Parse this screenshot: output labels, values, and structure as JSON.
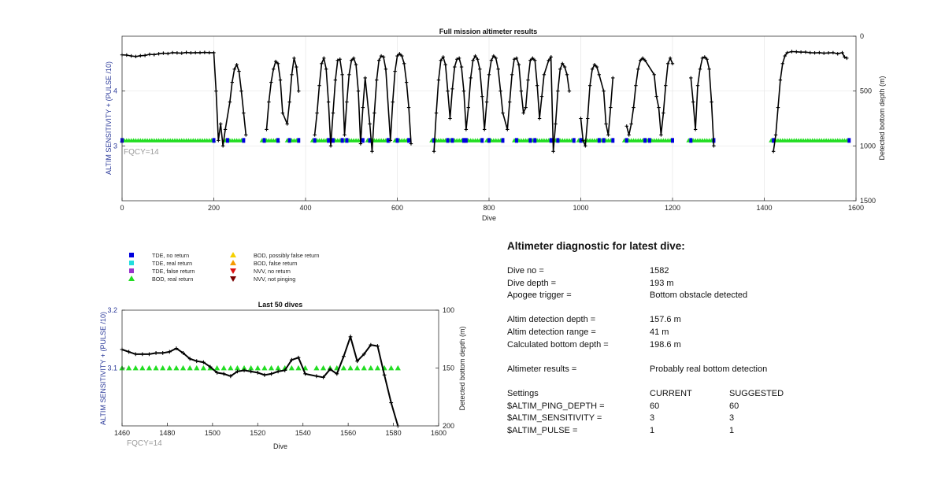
{
  "top_chart": {
    "chart_data": {
      "type": "scatter",
      "title": "Full mission altimeter results",
      "xlabel": "Dive",
      "ylabel_left": "ALTIM SENSITIVITY + (PULSE /10)",
      "ylabel_right": "Detected bottom depth (m)",
      "xlim": [
        0,
        1600
      ],
      "ylim_left": [
        2,
        5
      ],
      "ylim_right_reversed": [
        0,
        1500
      ],
      "x_ticks": [
        0,
        200,
        400,
        600,
        800,
        1000,
        1200,
        1400,
        1600
      ],
      "y_ticks_left": [
        3,
        4
      ],
      "y_ticks_right": [
        0,
        500,
        1000,
        1500
      ],
      "grid": true,
      "annotation": "FQCY=14",
      "sensitivity_level": 3.1,
      "tde_no_return_ranges": [
        [
          0,
          200
        ],
        [
          230,
          265
        ],
        [
          310,
          340
        ],
        [
          365,
          385
        ],
        [
          420,
          450
        ],
        [
          460,
          480
        ],
        [
          490,
          525
        ],
        [
          540,
          580
        ],
        [
          600,
          625
        ],
        [
          680,
          710
        ],
        [
          720,
          745
        ],
        [
          750,
          785
        ],
        [
          800,
          830
        ],
        [
          860,
          890
        ],
        [
          900,
          935
        ],
        [
          950,
          985
        ],
        [
          1000,
          1040
        ],
        [
          1050,
          1070
        ],
        [
          1100,
          1140
        ],
        [
          1150,
          1200
        ],
        [
          1240,
          1290
        ],
        [
          1420,
          1585
        ]
      ],
      "bod_real_return_ranges": [
        [
          0,
          200
        ],
        [
          225,
          260
        ],
        [
          305,
          340
        ],
        [
          360,
          380
        ],
        [
          415,
          445
        ],
        [
          455,
          480
        ],
        [
          485,
          520
        ],
        [
          535,
          575
        ],
        [
          595,
          620
        ],
        [
          675,
          705
        ],
        [
          715,
          740
        ],
        [
          745,
          780
        ],
        [
          795,
          825
        ],
        [
          855,
          885
        ],
        [
          895,
          930
        ],
        [
          945,
          980
        ],
        [
          995,
          1035
        ],
        [
          1045,
          1065
        ],
        [
          1095,
          1135
        ],
        [
          1145,
          1195
        ],
        [
          1235,
          1285
        ],
        [
          1415,
          1580
        ]
      ],
      "series": [
        {
          "name": "Detected bottom depth",
          "x": [
            0,
            10,
            20,
            30,
            40,
            50,
            60,
            70,
            80,
            90,
            100,
            110,
            120,
            130,
            140,
            150,
            160,
            170,
            180,
            190,
            200,
            205,
            210,
            215,
            220,
            225,
            235,
            240,
            245,
            250,
            255,
            260,
            265,
            270,
            315,
            320,
            325,
            330,
            335,
            340,
            345,
            350,
            360,
            365,
            370,
            375,
            380,
            385,
            420,
            425,
            430,
            435,
            440,
            445,
            450,
            455,
            460,
            465,
            470,
            475,
            480,
            485,
            490,
            495,
            500,
            505,
            510,
            515,
            520,
            525,
            530,
            540,
            545,
            550,
            555,
            560,
            565,
            570,
            575,
            585,
            590,
            595,
            600,
            605,
            610,
            615,
            620,
            625,
            630,
            680,
            685,
            690,
            695,
            700,
            705,
            710,
            715,
            720,
            725,
            730,
            735,
            740,
            745,
            750,
            755,
            760,
            765,
            770,
            775,
            780,
            785,
            790,
            795,
            800,
            805,
            810,
            815,
            820,
            825,
            830,
            840,
            845,
            850,
            855,
            860,
            865,
            870,
            875,
            880,
            885,
            890,
            895,
            900,
            905,
            910,
            915,
            920,
            930,
            935,
            940,
            945,
            950,
            955,
            960,
            965,
            970,
            975,
            1000,
            1005,
            1010,
            1015,
            1020,
            1025,
            1030,
            1035,
            1040,
            1050,
            1055,
            1060,
            1065,
            1070,
            1100,
            1105,
            1110,
            1115,
            1120,
            1125,
            1130,
            1135,
            1140,
            1160,
            1165,
            1170,
            1175,
            1180,
            1185,
            1190,
            1195,
            1200,
            1240,
            1245,
            1250,
            1255,
            1260,
            1265,
            1270,
            1275,
            1280,
            1285,
            1290,
            1420,
            1425,
            1430,
            1435,
            1440,
            1445,
            1450,
            1460,
            1470,
            1480,
            1490,
            1500,
            1510,
            1520,
            1530,
            1540,
            1550,
            1560,
            1570,
            1575,
            1580
          ],
          "y": [
            170,
            172,
            180,
            185,
            178,
            175,
            165,
            168,
            160,
            155,
            158,
            150,
            152,
            155,
            148,
            152,
            150,
            150,
            148,
            150,
            150,
            500,
            950,
            800,
            1000,
            850,
            600,
            420,
            300,
            260,
            320,
            500,
            700,
            900,
            850,
            600,
            420,
            300,
            230,
            250,
            400,
            700,
            800,
            600,
            350,
            200,
            280,
            500,
            900,
            700,
            450,
            250,
            200,
            300,
            600,
            1000,
            700,
            400,
            220,
            210,
            350,
            900,
            600,
            350,
            220,
            200,
            260,
            500,
            980,
            650,
            380,
            800,
            1050,
            700,
            400,
            220,
            180,
            190,
            300,
            950,
            600,
            320,
            180,
            160,
            180,
            250,
            420,
            650,
            980,
            1050,
            700,
            400,
            220,
            190,
            260,
            500,
            750,
            480,
            280,
            210,
            200,
            280,
            500,
            850,
            650,
            380,
            220,
            180,
            210,
            300,
            550,
            850,
            600,
            350,
            220,
            180,
            200,
            300,
            500,
            700,
            850,
            600,
            350,
            210,
            200,
            260,
            500,
            700,
            650,
            400,
            220,
            200,
            220,
            450,
            750,
            550,
            350,
            220,
            190,
            1050,
            800,
            500,
            300,
            250,
            280,
            350,
            500,
            750,
            950,
            1000,
            750,
            450,
            300,
            260,
            280,
            350,
            500,
            800,
            900,
            650,
            380,
            820,
            900,
            800,
            650,
            450,
            300,
            220,
            200,
            220,
            350,
            550,
            650,
            900,
            700,
            450,
            250,
            200,
            250,
            380,
            600,
            850,
            450,
            300,
            200,
            190,
            210,
            300,
            600,
            1000,
            1050,
            900,
            650,
            400,
            250,
            180,
            150,
            140,
            142,
            145,
            145,
            150,
            152,
            150,
            155,
            152,
            150,
            160,
            150,
            190,
            200
          ]
        }
      ]
    }
  },
  "legend": {
    "items": [
      {
        "label": "TDE, no return",
        "marker": "square",
        "color": "#0000dd"
      },
      {
        "label": "TDE, real return",
        "marker": "square",
        "color": "#22dddd"
      },
      {
        "label": "TDE, false return",
        "marker": "square",
        "color": "#9933cc"
      },
      {
        "label": "BOD, real return",
        "marker": "triangle-up",
        "color": "#22dd22"
      },
      {
        "label": "BOD, possibly false return",
        "marker": "triangle-up",
        "color": "#f5d000"
      },
      {
        "label": "BOD, false return",
        "marker": "triangle-up",
        "color": "#f59a00"
      },
      {
        "label": "NVV, no return",
        "marker": "triangle-down",
        "color": "#dd1111"
      },
      {
        "label": "NVV, not pinging",
        "marker": "triangle-down",
        "color": "#7a0000"
      }
    ]
  },
  "bottom_chart": {
    "chart_data": {
      "type": "line",
      "title": "Last 50 dives",
      "xlabel": "Dive",
      "ylabel_left": "ALTIM SENSITIVITY + (PULSE /10)",
      "ylabel_right": "Detected bottom depth (m)",
      "xlim": [
        1460,
        1600
      ],
      "ylim_left": [
        3.0,
        3.2
      ],
      "ylim_right_reversed": [
        100,
        200
      ],
      "x_ticks": [
        1460,
        1480,
        1500,
        1520,
        1540,
        1560,
        1580,
        1600
      ],
      "y_ticks_left": [
        3.1,
        3.2
      ],
      "y_ticks_right": [
        100,
        150,
        200
      ],
      "annotation": "FQCY=14",
      "sensitivity_level": 3.1,
      "bod_x": [
        1460,
        1463,
        1466,
        1469,
        1472,
        1475,
        1478,
        1481,
        1484,
        1487,
        1490,
        1493,
        1496,
        1499,
        1502,
        1505,
        1508,
        1511,
        1514,
        1517,
        1520,
        1523,
        1526,
        1529,
        1532,
        1535,
        1538,
        1541,
        1546,
        1549,
        1552,
        1555,
        1558,
        1561,
        1564,
        1567,
        1570,
        1573,
        1576,
        1579,
        1582
      ],
      "series": [
        {
          "name": "Detected bottom depth",
          "x": [
            1460,
            1463,
            1466,
            1469,
            1472,
            1475,
            1478,
            1481,
            1484,
            1487,
            1490,
            1493,
            1496,
            1499,
            1502,
            1505,
            1508,
            1511,
            1514,
            1517,
            1520,
            1523,
            1526,
            1529,
            1532,
            1535,
            1538,
            1541,
            1546,
            1549,
            1552,
            1555,
            1558,
            1561,
            1564,
            1567,
            1570,
            1573,
            1576,
            1579,
            1582
          ],
          "y": [
            134,
            136,
            138,
            138,
            138,
            137,
            137,
            136,
            133,
            137,
            142,
            144,
            145,
            149,
            154,
            155,
            157,
            153,
            152,
            153,
            154,
            156,
            155,
            153,
            152,
            143,
            141,
            155,
            157,
            158,
            151,
            155,
            140,
            123,
            144,
            138,
            130,
            131,
            156,
            180,
            200
          ]
        }
      ]
    }
  },
  "diagnostic": {
    "title": "Altimeter diagnostic for latest dive:",
    "dive_no_label": "Dive no =",
    "dive_no": "1582",
    "dive_depth_label": "Dive depth =",
    "dive_depth": "193 m",
    "apogee_label": "Apogee trigger =",
    "apogee": "Bottom obstacle detected",
    "altim_depth_label": "Altim detection depth =",
    "altim_depth": "157.6 m",
    "altim_range_label": "Altim detection range =",
    "altim_range": "41 m",
    "calc_depth_label": "Calculated bottom depth =",
    "calc_depth": "198.6 m",
    "results_label": "Altimeter results =",
    "results": "Probably real bottom detection",
    "settings_label": "Settings",
    "current_label": "CURRENT",
    "suggested_label": "SUGGESTED",
    "settings": [
      {
        "name": "$ALTIM_PING_DEPTH =",
        "current": "60",
        "suggested": "60"
      },
      {
        "name": "$ALTIM_SENSITIVITY =",
        "current": "3",
        "suggested": "3"
      },
      {
        "name": "$ALTIM_PULSE =",
        "current": "1",
        "suggested": "1"
      }
    ]
  }
}
